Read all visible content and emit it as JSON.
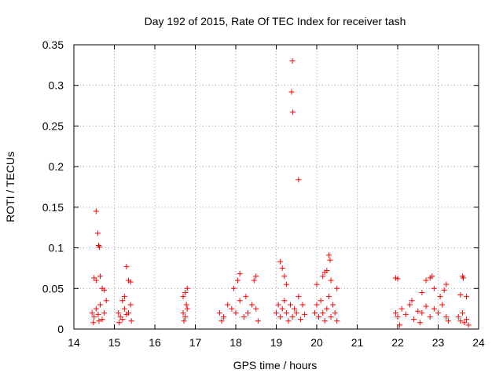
{
  "chart_data": {
    "type": "scatter",
    "title": "Day 192 of 2015, Rate Of TEC Index for receiver tash",
    "xlabel": "GPS time / hours",
    "ylabel": "ROTI / TECUs",
    "xlim": [
      14,
      24
    ],
    "ylim": [
      0,
      0.35
    ],
    "xticks": [
      "14",
      "15",
      "16",
      "17",
      "18",
      "19",
      "20",
      "21",
      "22",
      "23",
      "24"
    ],
    "yticks": [
      "0",
      "0.05",
      "0.1",
      "0.15",
      "0.2",
      "0.25",
      "0.3",
      "0.35"
    ],
    "grid": true,
    "marker": "+",
    "color": "#ff0000",
    "series": [
      {
        "name": "ROTI",
        "points": [
          [
            14.55,
            0.145
          ],
          [
            14.59,
            0.118
          ],
          [
            14.61,
            0.103
          ],
          [
            14.63,
            0.101
          ],
          [
            14.5,
            0.063
          ],
          [
            14.55,
            0.06
          ],
          [
            14.65,
            0.065
          ],
          [
            14.7,
            0.05
          ],
          [
            14.75,
            0.048
          ],
          [
            15.3,
            0.077
          ],
          [
            15.35,
            0.06
          ],
          [
            15.4,
            0.058
          ],
          [
            15.25,
            0.04
          ],
          [
            15.2,
            0.035
          ],
          [
            16.75,
            0.045
          ],
          [
            16.8,
            0.05
          ],
          [
            16.7,
            0.04
          ],
          [
            18.1,
            0.068
          ],
          [
            18.05,
            0.06
          ],
          [
            18.5,
            0.065
          ],
          [
            18.45,
            0.06
          ],
          [
            17.95,
            0.05
          ],
          [
            19.1,
            0.083
          ],
          [
            19.15,
            0.075
          ],
          [
            19.2,
            0.065
          ],
          [
            19.25,
            0.055
          ],
          [
            19.4,
            0.33
          ],
          [
            19.38,
            0.292
          ],
          [
            19.41,
            0.267
          ],
          [
            19.55,
            0.184
          ],
          [
            20.3,
            0.091
          ],
          [
            20.33,
            0.085
          ],
          [
            20.2,
            0.07
          ],
          [
            20.25,
            0.072
          ],
          [
            20.15,
            0.065
          ],
          [
            20.0,
            0.055
          ],
          [
            20.35,
            0.06
          ],
          [
            20.5,
            0.05
          ],
          [
            21.95,
            0.063
          ],
          [
            22.0,
            0.062
          ],
          [
            22.7,
            0.06
          ],
          [
            22.8,
            0.063
          ],
          [
            22.85,
            0.065
          ],
          [
            22.6,
            0.045
          ],
          [
            22.9,
            0.05
          ],
          [
            23.2,
            0.055
          ],
          [
            23.15,
            0.048
          ],
          [
            23.05,
            0.04
          ],
          [
            23.6,
            0.065
          ],
          [
            23.62,
            0.063
          ],
          [
            23.55,
            0.042
          ],
          [
            23.7,
            0.04
          ],
          [
            14.45,
            0.02
          ],
          [
            14.5,
            0.015
          ],
          [
            14.55,
            0.025
          ],
          [
            14.6,
            0.018
          ],
          [
            14.65,
            0.03
          ],
          [
            14.7,
            0.012
          ],
          [
            14.75,
            0.02
          ],
          [
            14.8,
            0.035
          ],
          [
            14.48,
            0.008
          ],
          [
            14.62,
            0.01
          ],
          [
            15.1,
            0.02
          ],
          [
            15.15,
            0.015
          ],
          [
            15.2,
            0.012
          ],
          [
            15.25,
            0.025
          ],
          [
            15.3,
            0.018
          ],
          [
            15.35,
            0.02
          ],
          [
            15.4,
            0.03
          ],
          [
            15.42,
            0.01
          ],
          [
            15.12,
            0.008
          ],
          [
            16.7,
            0.02
          ],
          [
            16.75,
            0.015
          ],
          [
            16.8,
            0.025
          ],
          [
            16.72,
            0.01
          ],
          [
            16.78,
            0.03
          ],
          [
            17.6,
            0.02
          ],
          [
            17.7,
            0.015
          ],
          [
            17.8,
            0.03
          ],
          [
            17.9,
            0.025
          ],
          [
            18.0,
            0.02
          ],
          [
            18.1,
            0.035
          ],
          [
            18.2,
            0.015
          ],
          [
            18.3,
            0.02
          ],
          [
            18.4,
            0.03
          ],
          [
            18.5,
            0.025
          ],
          [
            18.55,
            0.01
          ],
          [
            17.65,
            0.01
          ],
          [
            18.25,
            0.04
          ],
          [
            19.0,
            0.02
          ],
          [
            19.05,
            0.03
          ],
          [
            19.1,
            0.015
          ],
          [
            19.15,
            0.025
          ],
          [
            19.2,
            0.035
          ],
          [
            19.25,
            0.02
          ],
          [
            19.3,
            0.01
          ],
          [
            19.35,
            0.03
          ],
          [
            19.4,
            0.015
          ],
          [
            19.45,
            0.025
          ],
          [
            19.5,
            0.02
          ],
          [
            19.55,
            0.04
          ],
          [
            19.6,
            0.012
          ],
          [
            19.65,
            0.03
          ],
          [
            19.7,
            0.018
          ],
          [
            19.95,
            0.02
          ],
          [
            20.0,
            0.03
          ],
          [
            20.05,
            0.015
          ],
          [
            20.1,
            0.035
          ],
          [
            20.15,
            0.02
          ],
          [
            20.2,
            0.01
          ],
          [
            20.25,
            0.025
          ],
          [
            20.3,
            0.04
          ],
          [
            20.35,
            0.015
          ],
          [
            20.4,
            0.03
          ],
          [
            20.45,
            0.02
          ],
          [
            20.5,
            0.01
          ],
          [
            21.95,
            0.02
          ],
          [
            22.0,
            0.015
          ],
          [
            22.1,
            0.025
          ],
          [
            22.2,
            0.018
          ],
          [
            22.3,
            0.03
          ],
          [
            22.4,
            0.012
          ],
          [
            22.5,
            0.022
          ],
          [
            22.6,
            0.02
          ],
          [
            22.7,
            0.028
          ],
          [
            22.8,
            0.015
          ],
          [
            22.9,
            0.025
          ],
          [
            23.0,
            0.02
          ],
          [
            23.1,
            0.03
          ],
          [
            23.2,
            0.015
          ],
          [
            23.25,
            0.01
          ],
          [
            22.05,
            0.005
          ],
          [
            22.55,
            0.008
          ],
          [
            22.35,
            0.035
          ],
          [
            23.5,
            0.015
          ],
          [
            23.55,
            0.01
          ],
          [
            23.6,
            0.02
          ],
          [
            23.65,
            0.008
          ],
          [
            23.7,
            0.012
          ],
          [
            23.75,
            0.005
          ]
        ]
      }
    ]
  }
}
